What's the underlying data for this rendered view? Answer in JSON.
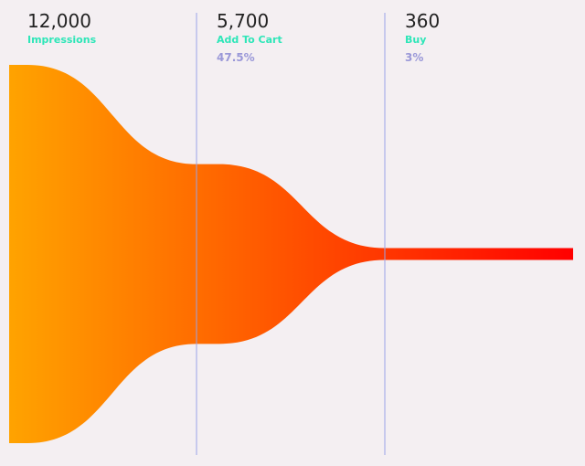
{
  "colors": {
    "background": "#f4eff2",
    "gradient_start": "#ffa300",
    "gradient_end": "#ff0000",
    "divider": "#9aa3e8",
    "label": "#2ee6b8",
    "percent": "#9a98d8",
    "value": "#222222"
  },
  "chart_data": {
    "type": "funnel",
    "stages": [
      {
        "label": "Impressions",
        "value": 12000,
        "value_text": "12,000",
        "percent_text": ""
      },
      {
        "label": "Add To Cart",
        "value": 5700,
        "value_text": "5,700",
        "percent_text": "47.5%"
      },
      {
        "label": "Buy",
        "value": 360,
        "value_text": "360",
        "percent_text": "3%"
      }
    ]
  }
}
